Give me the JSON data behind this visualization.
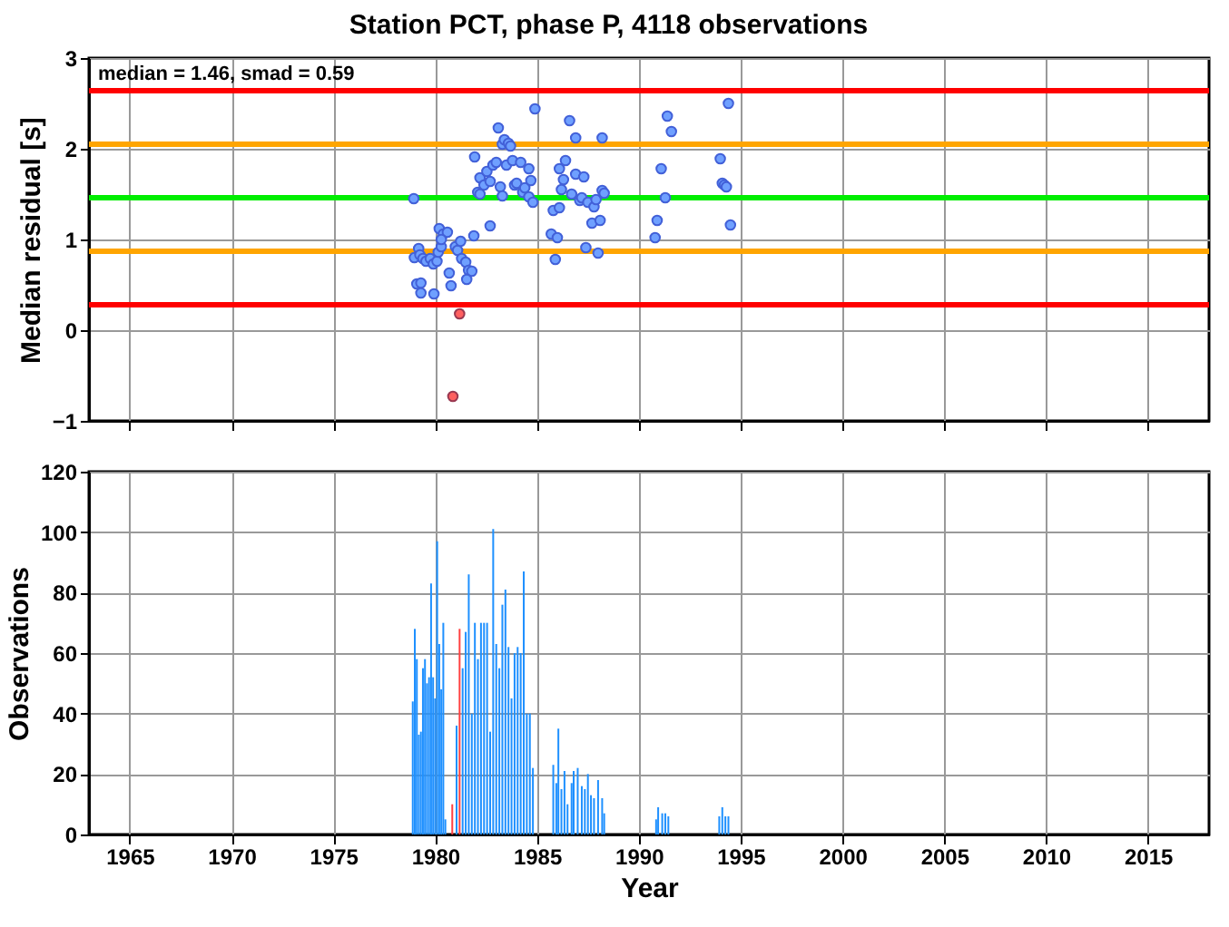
{
  "chart_data": [
    {
      "type": "scatter",
      "title": "Station PCT, phase P, 4118 observations",
      "ylabel": "Median residual [s]",
      "xlim": [
        1963,
        2018
      ],
      "xticks": [
        1965,
        1970,
        1975,
        1980,
        1985,
        1990,
        1995,
        2000,
        2005,
        2010,
        2015
      ],
      "ylim": [
        -1,
        3
      ],
      "yticks": [
        -1,
        0,
        1,
        2,
        3
      ],
      "grid": true,
      "tick_labels": "y",
      "marker": "circle",
      "annotations": [
        "median = 1.46, smad = 0.59"
      ],
      "ref_lines": [
        {
          "axis": "y",
          "value": 2.64,
          "color": "#ff0000"
        },
        {
          "axis": "y",
          "value": 2.05,
          "color": "#ffa500"
        },
        {
          "axis": "y",
          "value": 1.46,
          "color": "#00ee00"
        },
        {
          "axis": "y",
          "value": 0.87,
          "color": "#ffa500"
        },
        {
          "axis": "y",
          "value": 0.28,
          "color": "#ff0000"
        }
      ],
      "series": [
        {
          "color": "#6fa0ff",
          "x": [
            1978.95,
            1979.19,
            1978.98,
            1979.25,
            1979.4,
            1979.55,
            1979.76,
            1979.91,
            1980.09,
            1980.15,
            1980.3,
            1980.2,
            1980.4,
            1980.6,
            1980.3,
            1979.1,
            1979.3,
            1979.3,
            1979.94,
            1980.69,
            1980.78,
            1980.99,
            1981.1,
            1981.25,
            1981.3,
            1981.5,
            1981.64,
            1981.8,
            1981.55,
            1981.9,
            1982.7,
            1981.94,
            1982.09,
            1982.2,
            1982.4,
            1982.54,
            1982.7,
            1982.84,
            1983.0,
            1983.1,
            1983.2,
            1983.3,
            1983.4,
            1983.6,
            1983.7,
            1983.5,
            1983.8,
            1983.9,
            1984.0,
            1984.2,
            1984.3,
            1984.4,
            1984.6,
            1984.6,
            1984.7,
            1984.8,
            1984.9,
            1982.2,
            1983.3,
            1985.7,
            1985.8,
            1985.9,
            1986.0,
            1986.1,
            1986.1,
            1986.3,
            1986.4,
            1986.2,
            1986.6,
            1986.7,
            1986.9,
            1986.9,
            1987.1,
            1987.3,
            1987.2,
            1987.4,
            1987.5,
            1987.7,
            1987.8,
            1987.9,
            1988.0,
            1988.1,
            1988.2,
            1988.2,
            1988.3,
            1990.8,
            1990.9,
            1991.1,
            1991.3,
            1991.4,
            1991.6,
            1994.0,
            1994.1,
            1994.2,
            1994.3,
            1994.5,
            1994.4
          ],
          "values": [
            1.45,
            0.9,
            0.8,
            0.83,
            0.79,
            0.76,
            0.79,
            0.73,
            0.76,
            0.86,
            0.92,
            1.12,
            1.06,
            1.08,
            1.0,
            0.51,
            0.52,
            0.41,
            0.4,
            0.63,
            0.49,
            0.92,
            0.88,
            0.98,
            0.79,
            0.75,
            0.66,
            0.65,
            0.56,
            1.04,
            1.15,
            1.91,
            1.52,
            1.68,
            1.6,
            1.75,
            1.64,
            1.82,
            1.85,
            2.23,
            1.58,
            2.05,
            2.1,
            2.06,
            2.03,
            1.82,
            1.87,
            1.6,
            1.62,
            1.85,
            1.52,
            1.57,
            1.47,
            1.78,
            1.65,
            1.41,
            2.44,
            1.5,
            1.48,
            1.06,
            1.32,
            0.78,
            1.02,
            1.35,
            1.78,
            1.66,
            1.87,
            1.55,
            2.31,
            1.5,
            2.12,
            1.72,
            1.43,
            1.69,
            1.46,
            0.91,
            1.41,
            1.18,
            1.36,
            1.44,
            0.85,
            1.21,
            1.54,
            2.12,
            1.51,
            1.02,
            1.21,
            1.78,
            1.46,
            2.36,
            2.19,
            1.89,
            1.62,
            1.6,
            1.58,
            1.16,
            2.5
          ]
        },
        {
          "color": "#ff6060",
          "x": [
            1981.2,
            1980.87
          ],
          "values": [
            0.18,
            -0.73
          ]
        }
      ]
    },
    {
      "type": "bar",
      "xlabel": "Year",
      "ylabel": "Observations",
      "xlim": [
        1963,
        2018
      ],
      "xticks": [
        1965,
        1970,
        1975,
        1980,
        1985,
        1990,
        1995,
        2000,
        2005,
        2010,
        2015
      ],
      "ylim": [
        0,
        120
      ],
      "yticks": [
        0,
        20,
        40,
        60,
        80,
        100,
        120
      ],
      "grid": true,
      "x": [
        1978.9,
        1979.0,
        1979.1,
        1979.2,
        1979.3,
        1979.4,
        1979.5,
        1979.6,
        1979.7,
        1979.8,
        1979.9,
        1980.0,
        1980.1,
        1980.2,
        1980.3,
        1980.4,
        1980.5,
        1980.84,
        1981.05,
        1981.2,
        1981.35,
        1981.5,
        1981.65,
        1981.8,
        1981.95,
        1982.1,
        1982.25,
        1982.4,
        1982.55,
        1982.7,
        1982.85,
        1983.0,
        1983.15,
        1983.3,
        1983.45,
        1983.6,
        1983.75,
        1983.9,
        1984.05,
        1984.2,
        1984.35,
        1984.5,
        1984.65,
        1984.8,
        1985.8,
        1985.95,
        1986.05,
        1986.2,
        1986.35,
        1986.5,
        1986.7,
        1986.8,
        1987.0,
        1987.2,
        1987.35,
        1987.5,
        1987.65,
        1987.8,
        1988.0,
        1988.2,
        1988.3,
        1990.85,
        1990.95,
        1991.15,
        1991.3,
        1991.45,
        1993.95,
        1994.1,
        1994.25,
        1994.4
      ],
      "values": [
        44,
        68,
        58,
        33,
        34,
        55,
        58,
        50,
        52,
        83,
        52,
        45,
        97,
        63,
        48,
        70,
        5,
        10,
        36,
        68,
        55,
        67,
        86,
        40,
        70,
        58,
        70,
        70,
        70,
        34,
        101,
        63,
        55,
        76,
        81,
        62,
        45,
        60,
        62,
        60,
        87,
        40,
        40,
        22,
        23,
        17,
        35,
        15,
        21,
        10,
        17,
        21,
        22,
        16,
        15,
        20,
        13,
        12,
        18,
        12,
        7,
        5,
        9,
        7,
        7,
        6,
        6,
        9,
        6,
        6
      ],
      "colors": [
        "#1e90ff",
        "#1e90ff",
        "#1e90ff",
        "#1e90ff",
        "#1e90ff",
        "#1e90ff",
        "#1e90ff",
        "#1e90ff",
        "#1e90ff",
        "#1e90ff",
        "#1e90ff",
        "#1e90ff",
        "#1e90ff",
        "#1e90ff",
        "#1e90ff",
        "#1e90ff",
        "#1e90ff",
        "#ff4040",
        "#1e90ff",
        "#ff4040",
        "#1e90ff",
        "#1e90ff",
        "#1e90ff",
        "#1e90ff",
        "#1e90ff",
        "#1e90ff",
        "#1e90ff",
        "#1e90ff",
        "#1e90ff",
        "#1e90ff",
        "#1e90ff",
        "#1e90ff",
        "#1e90ff",
        "#1e90ff",
        "#1e90ff",
        "#1e90ff",
        "#1e90ff",
        "#1e90ff",
        "#1e90ff",
        "#1e90ff",
        "#1e90ff",
        "#1e90ff",
        "#1e90ff",
        "#1e90ff",
        "#1e90ff",
        "#1e90ff",
        "#1e90ff",
        "#1e90ff",
        "#1e90ff",
        "#1e90ff",
        "#1e90ff",
        "#1e90ff",
        "#1e90ff",
        "#1e90ff",
        "#1e90ff",
        "#1e90ff",
        "#1e90ff",
        "#1e90ff",
        "#1e90ff",
        "#1e90ff",
        "#1e90ff",
        "#1e90ff",
        "#1e90ff",
        "#1e90ff",
        "#1e90ff",
        "#1e90ff",
        "#1e90ff",
        "#1e90ff",
        "#1e90ff",
        "#1e90ff"
      ]
    }
  ]
}
